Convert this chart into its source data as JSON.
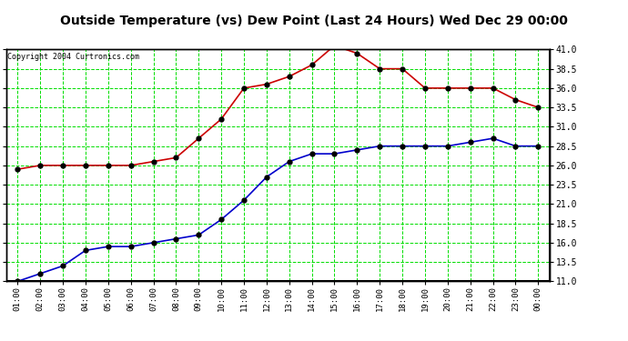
{
  "title": "Outside Temperature (vs) Dew Point (Last 24 Hours) Wed Dec 29 00:00",
  "copyright": "Copyright 2004 Curtronics.com",
  "x_labels": [
    "01:00",
    "02:00",
    "03:00",
    "04:00",
    "05:00",
    "06:00",
    "07:00",
    "08:00",
    "09:00",
    "10:00",
    "11:00",
    "12:00",
    "13:00",
    "14:00",
    "15:00",
    "16:00",
    "17:00",
    "18:00",
    "19:00",
    "20:00",
    "21:00",
    "22:00",
    "23:00",
    "00:00"
  ],
  "temp_y": [
    25.5,
    26.0,
    26.0,
    26.0,
    26.0,
    26.0,
    26.5,
    27.0,
    29.5,
    32.0,
    36.0,
    36.5,
    37.5,
    39.0,
    41.5,
    40.5,
    38.5,
    38.5,
    36.0,
    36.0,
    36.0,
    36.0,
    34.5,
    33.5
  ],
  "dew_y": [
    11.0,
    12.0,
    13.0,
    15.0,
    15.5,
    15.5,
    16.0,
    16.5,
    17.0,
    19.0,
    21.5,
    24.5,
    26.5,
    27.5,
    27.5,
    28.0,
    28.5,
    28.5,
    28.5,
    28.5,
    29.0,
    29.5,
    28.5,
    28.5
  ],
  "temp_color": "#cc0000",
  "dew_color": "#0000cc",
  "marker_color": "#000000",
  "bg_plot": "#ffffff",
  "bg_figure": "#ffffff",
  "grid_color": "#00dd00",
  "ylim": [
    11.0,
    41.0
  ],
  "yticks": [
    11.0,
    13.5,
    16.0,
    18.5,
    21.0,
    23.5,
    26.0,
    28.5,
    31.0,
    33.5,
    36.0,
    38.5,
    41.0
  ]
}
